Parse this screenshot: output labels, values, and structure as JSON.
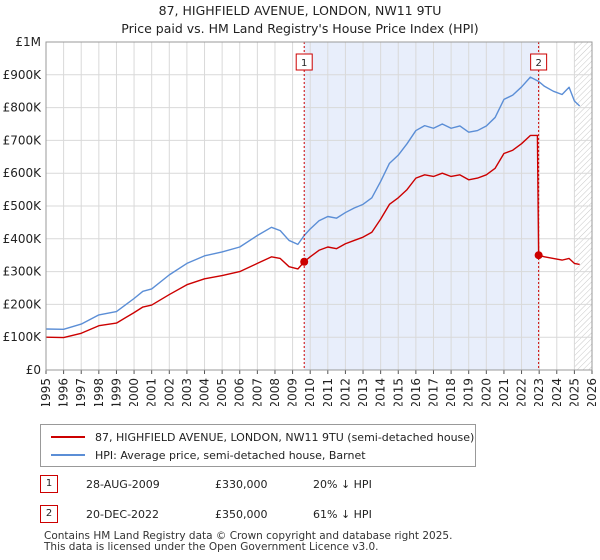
{
  "header": {
    "title": "87, HIGHFIELD AVENUE, LONDON, NW11 9TU",
    "subtitle": "Price paid vs. HM Land Registry's House Price Index (HPI)"
  },
  "legend": {
    "property_label": "87, HIGHFIELD AVENUE, LONDON, NW11 9TU (semi-detached house)",
    "hpi_label": "HPI: Average price, semi-detached house, Barnet"
  },
  "sales": [
    {
      "num": "1",
      "date": "28-AUG-2009",
      "price": "£330,000",
      "hpi": "20% ↓ HPI"
    },
    {
      "num": "2",
      "date": "20-DEC-2022",
      "price": "£350,000",
      "hpi": "61% ↓ HPI"
    }
  ],
  "footer": {
    "line1": "Contains HM Land Registry data © Crown copyright and database right 2025.",
    "line2": "This data is licensed under the Open Government Licence v3.0."
  },
  "colors": {
    "property": "#cc0000",
    "hpi": "#5b8ed6",
    "shade": "#e8eefb",
    "grid": "#d9d9d9"
  },
  "chart_data": {
    "type": "line",
    "title": "Price paid vs. HM Land Registry's House Price Index (HPI)",
    "xlim": [
      1995,
      2026
    ],
    "ylim": [
      0,
      1000000
    ],
    "x_ticks": [
      "1995",
      "1996",
      "1997",
      "1998",
      "1999",
      "2000",
      "2001",
      "2002",
      "2003",
      "2004",
      "2005",
      "2006",
      "2007",
      "2008",
      "2009",
      "2010",
      "2011",
      "2012",
      "2013",
      "2014",
      "2015",
      "2016",
      "2017",
      "2018",
      "2019",
      "2020",
      "2021",
      "2022",
      "2023",
      "2024",
      "2025",
      "2026"
    ],
    "y_ticks": [
      {
        "value": 0,
        "label": "£0"
      },
      {
        "value": 100000,
        "label": "£100K"
      },
      {
        "value": 200000,
        "label": "£200K"
      },
      {
        "value": 300000,
        "label": "£300K"
      },
      {
        "value": 400000,
        "label": "£400K"
      },
      {
        "value": 500000,
        "label": "£500K"
      },
      {
        "value": 600000,
        "label": "£600K"
      },
      {
        "value": 700000,
        "label": "£700K"
      },
      {
        "value": 800000,
        "label": "£800K"
      },
      {
        "value": 900000,
        "label": "£900K"
      },
      {
        "value": 1000000,
        "label": "£1M"
      }
    ],
    "shaded_range": [
      2009.66,
      2022.97
    ],
    "hatch_from": 2025.0,
    "markers": [
      {
        "label": "1",
        "x": 2009.66,
        "y": 330000
      },
      {
        "label": "2",
        "x": 2022.97,
        "y": 350000
      }
    ],
    "series": [
      {
        "name": "87, HIGHFIELD AVENUE, LONDON, NW11 9TU (semi-detached house)",
        "color": "#cc0000",
        "points": [
          [
            1995.0,
            100000
          ],
          [
            1996.0,
            99000
          ],
          [
            1997.0,
            112000
          ],
          [
            1998.0,
            135000
          ],
          [
            1999.0,
            143000
          ],
          [
            2000.0,
            175000
          ],
          [
            2000.5,
            192000
          ],
          [
            2001.0,
            198000
          ],
          [
            2002.0,
            230000
          ],
          [
            2003.0,
            260000
          ],
          [
            2004.0,
            278000
          ],
          [
            2005.0,
            288000
          ],
          [
            2006.0,
            300000
          ],
          [
            2007.0,
            325000
          ],
          [
            2007.8,
            345000
          ],
          [
            2008.3,
            340000
          ],
          [
            2008.8,
            315000
          ],
          [
            2009.3,
            308000
          ],
          [
            2009.66,
            330000
          ],
          [
            2010.0,
            345000
          ],
          [
            2010.5,
            365000
          ],
          [
            2011.0,
            375000
          ],
          [
            2011.5,
            370000
          ],
          [
            2012.0,
            385000
          ],
          [
            2012.5,
            395000
          ],
          [
            2013.0,
            405000
          ],
          [
            2013.5,
            420000
          ],
          [
            2014.0,
            460000
          ],
          [
            2014.5,
            505000
          ],
          [
            2015.0,
            525000
          ],
          [
            2015.5,
            550000
          ],
          [
            2016.0,
            585000
          ],
          [
            2016.5,
            595000
          ],
          [
            2017.0,
            590000
          ],
          [
            2017.5,
            600000
          ],
          [
            2018.0,
            590000
          ],
          [
            2018.5,
            595000
          ],
          [
            2019.0,
            580000
          ],
          [
            2019.5,
            585000
          ],
          [
            2020.0,
            595000
          ],
          [
            2020.5,
            615000
          ],
          [
            2021.0,
            660000
          ],
          [
            2021.5,
            670000
          ],
          [
            2022.0,
            690000
          ],
          [
            2022.5,
            715000
          ],
          [
            2022.9,
            715000
          ],
          [
            2022.97,
            350000
          ],
          [
            2023.3,
            345000
          ],
          [
            2023.8,
            340000
          ],
          [
            2024.3,
            335000
          ],
          [
            2024.7,
            340000
          ],
          [
            2025.0,
            325000
          ],
          [
            2025.3,
            322000
          ]
        ]
      },
      {
        "name": "HPI: Average price, semi-detached house, Barnet",
        "color": "#5b8ed6",
        "points": [
          [
            1995.0,
            125000
          ],
          [
            1996.0,
            124000
          ],
          [
            1997.0,
            140000
          ],
          [
            1998.0,
            168000
          ],
          [
            1999.0,
            178000
          ],
          [
            2000.0,
            218000
          ],
          [
            2000.5,
            240000
          ],
          [
            2001.0,
            247000
          ],
          [
            2002.0,
            290000
          ],
          [
            2003.0,
            325000
          ],
          [
            2004.0,
            348000
          ],
          [
            2005.0,
            360000
          ],
          [
            2006.0,
            375000
          ],
          [
            2007.0,
            410000
          ],
          [
            2007.8,
            435000
          ],
          [
            2008.3,
            425000
          ],
          [
            2008.8,
            395000
          ],
          [
            2009.3,
            383000
          ],
          [
            2009.66,
            410000
          ],
          [
            2010.0,
            430000
          ],
          [
            2010.5,
            455000
          ],
          [
            2011.0,
            468000
          ],
          [
            2011.5,
            463000
          ],
          [
            2012.0,
            480000
          ],
          [
            2012.5,
            494000
          ],
          [
            2013.0,
            505000
          ],
          [
            2013.5,
            525000
          ],
          [
            2014.0,
            575000
          ],
          [
            2014.5,
            630000
          ],
          [
            2015.0,
            655000
          ],
          [
            2015.5,
            690000
          ],
          [
            2016.0,
            730000
          ],
          [
            2016.5,
            745000
          ],
          [
            2017.0,
            737000
          ],
          [
            2017.5,
            750000
          ],
          [
            2018.0,
            737000
          ],
          [
            2018.5,
            744000
          ],
          [
            2019.0,
            725000
          ],
          [
            2019.5,
            730000
          ],
          [
            2020.0,
            744000
          ],
          [
            2020.5,
            770000
          ],
          [
            2021.0,
            825000
          ],
          [
            2021.5,
            838000
          ],
          [
            2022.0,
            863000
          ],
          [
            2022.5,
            893000
          ],
          [
            2022.97,
            880000
          ],
          [
            2023.3,
            865000
          ],
          [
            2023.8,
            850000
          ],
          [
            2024.3,
            840000
          ],
          [
            2024.7,
            862000
          ],
          [
            2025.0,
            820000
          ],
          [
            2025.3,
            805000
          ]
        ]
      }
    ]
  }
}
